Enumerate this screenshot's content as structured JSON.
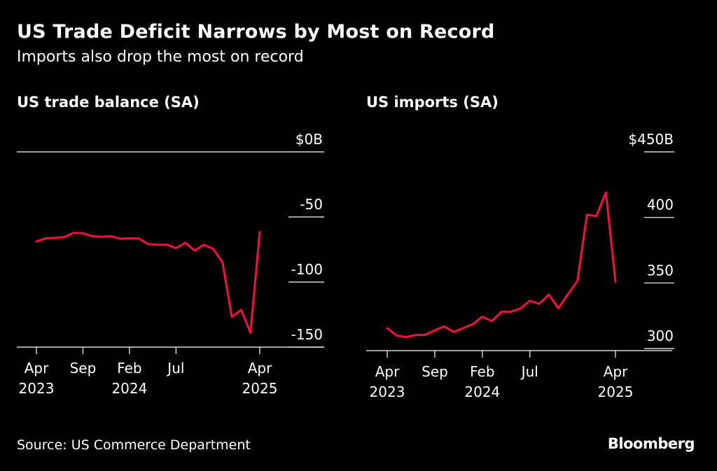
{
  "title": "US Trade Deficit Narrows by Most on Record",
  "subtitle": "Imports also drop the most on record",
  "source": "Source: US Commerce Department",
  "brand": "Bloomberg",
  "colors": {
    "background": "#000000",
    "line": "#e8123d",
    "text": "#ffffff",
    "grid": "#ffffff"
  },
  "chart_data": [
    {
      "type": "line",
      "title": "US trade balance (SA)",
      "xlabel": "",
      "ylabel": "",
      "x": [
        "2023-04",
        "2023-05",
        "2023-06",
        "2023-07",
        "2023-08",
        "2023-09",
        "2023-10",
        "2023-11",
        "2023-12",
        "2024-01",
        "2024-02",
        "2024-03",
        "2024-04",
        "2024-05",
        "2024-06",
        "2024-07",
        "2024-08",
        "2024-09",
        "2024-10",
        "2024-11",
        "2024-12",
        "2025-01",
        "2025-02",
        "2025-03",
        "2025-04"
      ],
      "series": [
        {
          "values": [
            -68.9,
            -66.5,
            -66.0,
            -65.5,
            -62.2,
            -62.5,
            -64.8,
            -65.2,
            -64.8,
            -66.7,
            -66.5,
            -66.6,
            -70.8,
            -71.4,
            -71.3,
            -74.0,
            -69.9,
            -75.8,
            -71.4,
            -74.5,
            -84.8,
            -126.8,
            -121.4,
            -139.0,
            -61.6
          ]
        }
      ],
      "ylim": [
        -150,
        0
      ],
      "yticks": [
        "$0B",
        "-50",
        "-100",
        "-150"
      ],
      "xticks": [
        {
          "x": "2023-04",
          "label": "Apr",
          "sub": "2023"
        },
        {
          "x": "2023-09",
          "label": "Sep",
          "sub": ""
        },
        {
          "x": "2024-02",
          "label": "Feb",
          "sub": "2024"
        },
        {
          "x": "2024-07",
          "label": "Jul",
          "sub": ""
        },
        {
          "x": "2025-04",
          "label": "Apr",
          "sub": "2025"
        }
      ],
      "grid": true
    },
    {
      "type": "line",
      "title": "US imports (SA)",
      "xlabel": "",
      "ylabel": "",
      "x": [
        "2023-04",
        "2023-05",
        "2023-06",
        "2023-07",
        "2023-08",
        "2023-09",
        "2023-10",
        "2023-11",
        "2023-12",
        "2024-01",
        "2024-02",
        "2024-03",
        "2024-04",
        "2024-05",
        "2024-06",
        "2024-07",
        "2024-08",
        "2024-09",
        "2024-10",
        "2024-11",
        "2024-12",
        "2025-01",
        "2025-02",
        "2025-03",
        "2025-04"
      ],
      "series": [
        {
          "values": [
            315.5,
            309.8,
            308.7,
            310.3,
            310.4,
            313.9,
            316.8,
            312.6,
            315.6,
            318.6,
            324.2,
            320.9,
            327.9,
            328.0,
            330.5,
            336.4,
            334.1,
            341.1,
            330.6,
            341.4,
            351.5,
            402.0,
            401.0,
            419.0,
            351.0
          ]
        }
      ],
      "ylim": [
        300,
        450
      ],
      "yticks": [
        "$450B",
        "400",
        "350",
        "300"
      ],
      "xticks": [
        {
          "x": "2023-04",
          "label": "Apr",
          "sub": "2023"
        },
        {
          "x": "2023-09",
          "label": "Sep",
          "sub": ""
        },
        {
          "x": "2024-02",
          "label": "Feb",
          "sub": "2024"
        },
        {
          "x": "2024-07",
          "label": "Jul",
          "sub": ""
        },
        {
          "x": "2025-04",
          "label": "Apr",
          "sub": "2025"
        }
      ],
      "grid": true
    }
  ]
}
